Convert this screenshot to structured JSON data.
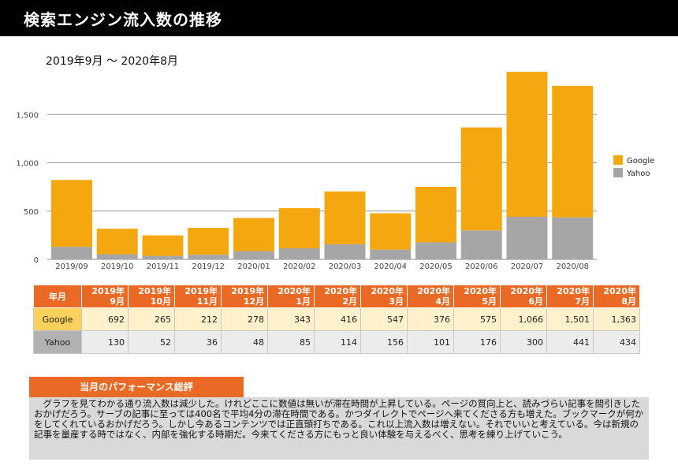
{
  "page": {
    "title": "検索エンジン流入数の推移",
    "period": "2019年9月 ～ 2020年8月"
  },
  "chart_data": {
    "type": "bar",
    "stacked": true,
    "categories": [
      "2019/09",
      "2019/10",
      "2019/11",
      "2019/12",
      "2020/01",
      "2020/02",
      "2020/03",
      "2020/04",
      "2020/05",
      "2020/06",
      "2020/07",
      "2020/08"
    ],
    "series": [
      {
        "name": "Yahoo",
        "color": "#a6a6a6",
        "values": [
          130,
          52,
          36,
          48,
          85,
          114,
          156,
          101,
          176,
          300,
          441,
          434
        ]
      },
      {
        "name": "Google",
        "color": "#f5a70f",
        "values": [
          692,
          265,
          212,
          278,
          343,
          416,
          547,
          376,
          575,
          1066,
          1501,
          1363
        ]
      }
    ],
    "yticks": [
      0,
      500,
      1000,
      1500
    ],
    "ytick_labels": [
      "0",
      "500",
      "1,000",
      "1,500"
    ],
    "ylim": [
      0,
      2000
    ],
    "grid": true,
    "legend_position": "right",
    "legend": [
      "Google",
      "Yahoo"
    ]
  },
  "table": {
    "row_header": "年月",
    "columns": [
      [
        "2019年",
        "9月"
      ],
      [
        "2019年",
        "10月"
      ],
      [
        "2019年",
        "11月"
      ],
      [
        "2019年",
        "12月"
      ],
      [
        "2020年",
        "1月"
      ],
      [
        "2020年",
        "2月"
      ],
      [
        "2020年",
        "3月"
      ],
      [
        "2020年",
        "4月"
      ],
      [
        "2020年",
        "5月"
      ],
      [
        "2020年",
        "6月"
      ],
      [
        "2020年",
        "7月"
      ],
      [
        "2020年",
        "8月"
      ]
    ],
    "rows": [
      {
        "label": "Google",
        "values": [
          "692",
          "265",
          "212",
          "278",
          "343",
          "416",
          "547",
          "376",
          "575",
          "1,066",
          "1,501",
          "1,363"
        ]
      },
      {
        "label": "Yahoo",
        "values": [
          "130",
          "52",
          "36",
          "48",
          "85",
          "114",
          "156",
          "101",
          "176",
          "300",
          "441",
          "434"
        ]
      }
    ]
  },
  "evaluation": {
    "title": "当月のパフォーマンス総評",
    "body": "グラフを見てわかる通り流入数は減少した。けれどここに数値は無いが滞在時間が上昇している。ページの質向上と、読みづらい記事を間引きしたおかげだろう。サーブの記事に至っては400名で平均4分の滞在時間である。かつダイレクトでページへ来てくださる方も増えた。ブックマークが何かをしてくれているおかげだろう。しかし今あるコンテンツでは正直頭打ちである。これ以上流入数は増えない。それでいいと考えている。今は新規の記事を量産する時ではなく、内部を強化する時期だ。今来てくださる方にもっと良い体験を与えるべく、思考を練り上げていこう。"
  }
}
